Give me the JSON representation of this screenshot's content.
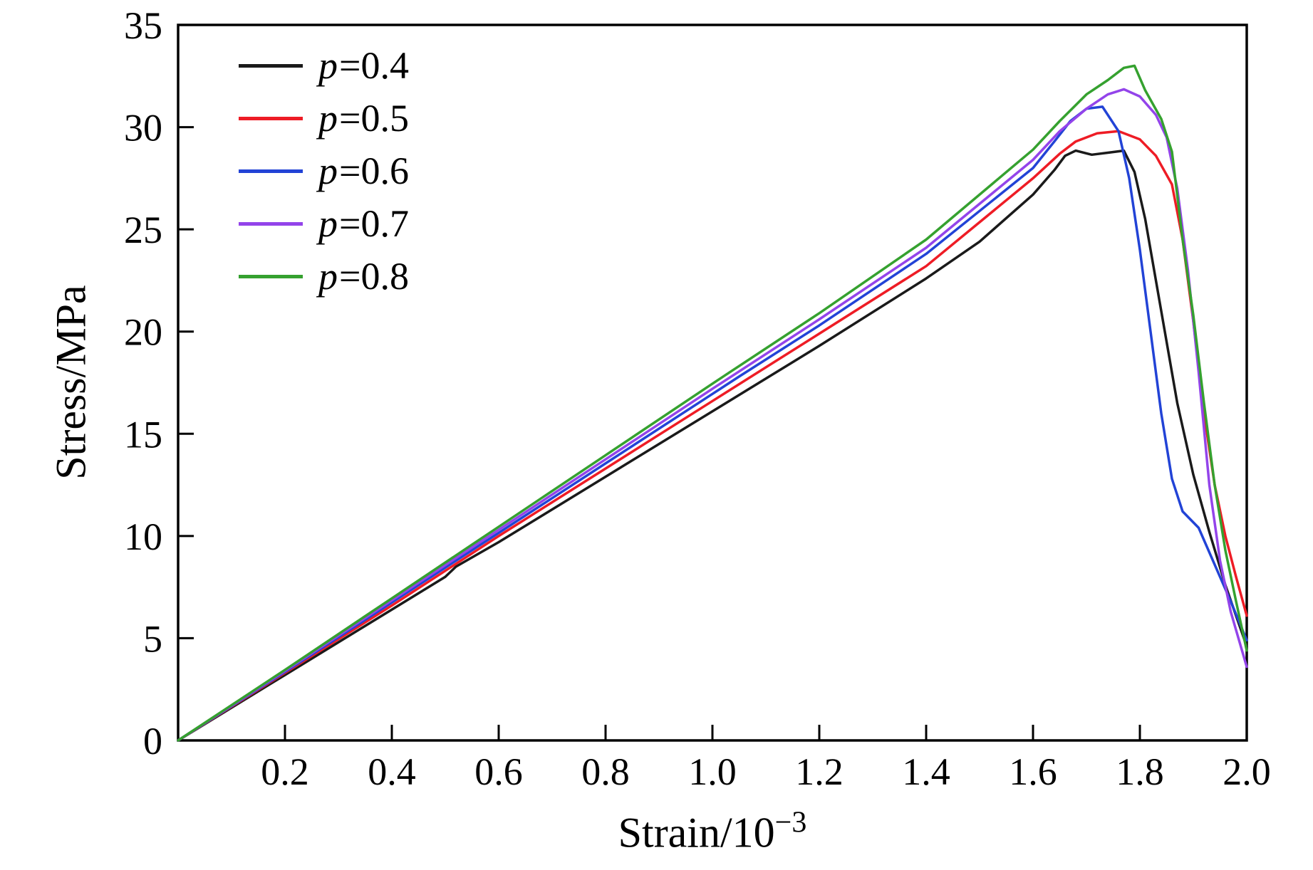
{
  "chart_data": {
    "type": "line",
    "title": "",
    "xlabel_base": "Strain/10",
    "xlabel_sup": "−3",
    "ylabel": "Stress/MPa",
    "xlim": [
      0,
      2.0
    ],
    "ylim": [
      0,
      35
    ],
    "grid": false,
    "legend_position": "top-left",
    "xticks": {
      "values": [
        0.2,
        0.4,
        0.6,
        0.8,
        1.0,
        1.2,
        1.4,
        1.6,
        1.8,
        2.0
      ],
      "labels": [
        "0.2",
        "0.4",
        "0.6",
        "0.8",
        "1.0",
        "1.2",
        "1.4",
        "1.6",
        "1.8",
        "2.0"
      ]
    },
    "yticks": {
      "values": [
        0,
        5,
        10,
        15,
        20,
        25,
        30,
        35
      ],
      "labels": [
        "0",
        "5",
        "10",
        "15",
        "20",
        "25",
        "30",
        "35"
      ]
    },
    "series": [
      {
        "name": "p=0.4",
        "color": "#1a1a1a",
        "points": [
          [
            0,
            0
          ],
          [
            0.2,
            3.2
          ],
          [
            0.4,
            6.4
          ],
          [
            0.5,
            8.0
          ],
          [
            0.52,
            8.5
          ],
          [
            0.6,
            9.7
          ],
          [
            0.8,
            12.9
          ],
          [
            1.0,
            16.1
          ],
          [
            1.05,
            16.9
          ],
          [
            1.1,
            17.7
          ],
          [
            1.2,
            19.3
          ],
          [
            1.4,
            22.6
          ],
          [
            1.5,
            24.4
          ],
          [
            1.6,
            26.7
          ],
          [
            1.64,
            27.9
          ],
          [
            1.66,
            28.6
          ],
          [
            1.68,
            28.85
          ],
          [
            1.71,
            28.65
          ],
          [
            1.74,
            28.75
          ],
          [
            1.77,
            28.85
          ],
          [
            1.79,
            27.8
          ],
          [
            1.81,
            25.5
          ],
          [
            1.83,
            22.5
          ],
          [
            1.85,
            19.5
          ],
          [
            1.87,
            16.5
          ],
          [
            1.9,
            13.0
          ],
          [
            1.93,
            10.2
          ],
          [
            1.96,
            7.6
          ],
          [
            2.0,
            4.6
          ]
        ]
      },
      {
        "name": "p=0.5",
        "color": "#ee1c25",
        "points": [
          [
            0,
            0
          ],
          [
            0.2,
            3.3
          ],
          [
            0.4,
            6.6
          ],
          [
            0.6,
            10.0
          ],
          [
            0.8,
            13.3
          ],
          [
            1.0,
            16.6
          ],
          [
            1.2,
            19.9
          ],
          [
            1.4,
            23.2
          ],
          [
            1.6,
            27.5
          ],
          [
            1.65,
            28.7
          ],
          [
            1.68,
            29.3
          ],
          [
            1.72,
            29.7
          ],
          [
            1.76,
            29.8
          ],
          [
            1.8,
            29.4
          ],
          [
            1.83,
            28.6
          ],
          [
            1.86,
            27.2
          ],
          [
            1.88,
            24.5
          ],
          [
            1.9,
            20.5
          ],
          [
            1.92,
            16.0
          ],
          [
            1.94,
            12.5
          ],
          [
            1.96,
            10.0
          ],
          [
            1.98,
            8.0
          ],
          [
            2.0,
            6.1
          ]
        ]
      },
      {
        "name": "p=0.6",
        "color": "#2243d6",
        "points": [
          [
            0,
            0
          ],
          [
            0.2,
            3.35
          ],
          [
            0.4,
            6.75
          ],
          [
            0.6,
            10.15
          ],
          [
            0.8,
            13.55
          ],
          [
            1.0,
            16.95
          ],
          [
            1.05,
            17.8
          ],
          [
            1.2,
            20.3
          ],
          [
            1.4,
            23.8
          ],
          [
            1.6,
            28.0
          ],
          [
            1.64,
            29.3
          ],
          [
            1.67,
            30.3
          ],
          [
            1.7,
            30.9
          ],
          [
            1.73,
            31.0
          ],
          [
            1.76,
            29.8
          ],
          [
            1.78,
            27.5
          ],
          [
            1.8,
            24.0
          ],
          [
            1.82,
            20.0
          ],
          [
            1.84,
            16.0
          ],
          [
            1.86,
            12.8
          ],
          [
            1.88,
            11.2
          ],
          [
            1.91,
            10.4
          ],
          [
            1.94,
            8.6
          ],
          [
            1.97,
            6.8
          ],
          [
            2.0,
            4.9
          ]
        ]
      },
      {
        "name": "p=0.7",
        "color": "#9344ea",
        "points": [
          [
            0,
            0
          ],
          [
            0.2,
            3.4
          ],
          [
            0.4,
            6.85
          ],
          [
            0.6,
            10.3
          ],
          [
            0.8,
            13.75
          ],
          [
            1.0,
            17.2
          ],
          [
            1.2,
            20.6
          ],
          [
            1.4,
            24.1
          ],
          [
            1.6,
            28.4
          ],
          [
            1.65,
            29.8
          ],
          [
            1.7,
            30.9
          ],
          [
            1.74,
            31.6
          ],
          [
            1.77,
            31.85
          ],
          [
            1.8,
            31.5
          ],
          [
            1.83,
            30.6
          ],
          [
            1.85,
            29.5
          ],
          [
            1.87,
            27.0
          ],
          [
            1.89,
            23.0
          ],
          [
            1.91,
            18.0
          ],
          [
            1.93,
            12.5
          ],
          [
            1.95,
            8.8
          ],
          [
            1.97,
            6.3
          ],
          [
            2.0,
            3.6
          ]
        ]
      },
      {
        "name": "p=0.8",
        "color": "#35a12f",
        "points": [
          [
            0,
            0
          ],
          [
            0.2,
            3.45
          ],
          [
            0.4,
            6.95
          ],
          [
            0.6,
            10.45
          ],
          [
            0.8,
            13.95
          ],
          [
            1.0,
            17.45
          ],
          [
            1.2,
            20.9
          ],
          [
            1.4,
            24.5
          ],
          [
            1.55,
            27.8
          ],
          [
            1.6,
            28.9
          ],
          [
            1.65,
            30.3
          ],
          [
            1.7,
            31.6
          ],
          [
            1.74,
            32.3
          ],
          [
            1.77,
            32.9
          ],
          [
            1.79,
            33.0
          ],
          [
            1.81,
            31.8
          ],
          [
            1.84,
            30.4
          ],
          [
            1.86,
            28.8
          ],
          [
            1.88,
            24.5
          ],
          [
            1.9,
            20.8
          ],
          [
            1.92,
            16.5
          ],
          [
            1.94,
            12.5
          ],
          [
            1.96,
            9.3
          ],
          [
            1.98,
            6.8
          ],
          [
            2.0,
            4.4
          ]
        ]
      }
    ]
  }
}
